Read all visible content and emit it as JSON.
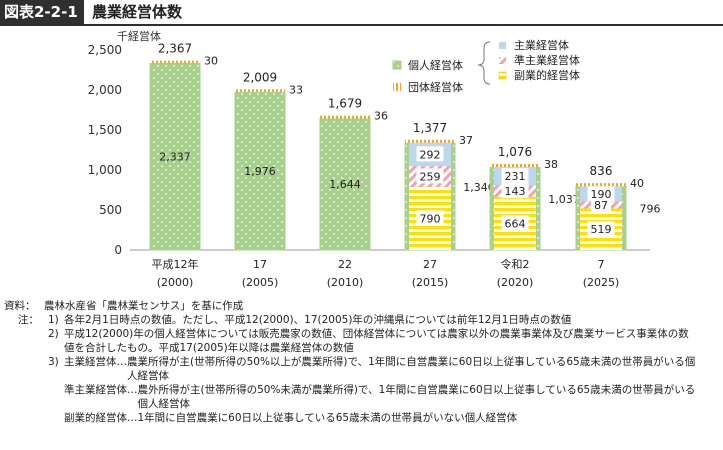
{
  "header": {
    "figure_number": "図表2-2-1",
    "title": "農業経営体数"
  },
  "colors": {
    "individual": "#a8d08d",
    "main": "#bdd7ee",
    "semi_main_stripe": "#f4a0b0",
    "side": "#ffe000",
    "organization": "#f5a623"
  },
  "chart_data": {
    "type": "bar",
    "stacked": true,
    "ylabel": "千経営体",
    "ylim": [
      0,
      2500
    ],
    "yticks": [
      "0",
      "500",
      "1,000",
      "1,500",
      "2,000",
      "2,500"
    ],
    "categories": [
      {
        "line1": "平成12年",
        "line2": "(2000)"
      },
      {
        "line1": "17",
        "line2": "(2005)"
      },
      {
        "line1": "22",
        "line2": "(2010)"
      },
      {
        "line1": "27",
        "line2": "(2015)"
      },
      {
        "line1": "令和2",
        "line2": "(2020)"
      },
      {
        "line1": "7",
        "line2": "(2025)"
      }
    ],
    "totals": [
      2367,
      2009,
      1679,
      1377,
      1076,
      836
    ],
    "total_labels": [
      "2,367",
      "2,009",
      "1,679",
      "1,377",
      "1,076",
      "836"
    ],
    "individual": [
      2337,
      1976,
      1644,
      1340,
      1037,
      796
    ],
    "individual_labels": [
      "2,337",
      "1,976",
      "1,644",
      "1,340",
      "1,037",
      "796"
    ],
    "main": [
      null,
      null,
      null,
      292,
      231,
      190
    ],
    "semi_main": [
      null,
      null,
      null,
      259,
      143,
      87
    ],
    "side": [
      null,
      null,
      null,
      790,
      664,
      519
    ],
    "organization": [
      30,
      33,
      36,
      37,
      38,
      40
    ],
    "legend": {
      "individual": "個人経営体",
      "organization": "団体経営体",
      "main": "主業経営体",
      "semi_main": "準主業経営体",
      "side": "副業的経営体"
    }
  },
  "notes": {
    "source_tag": "資料：",
    "source_text": "農林水産省「農林業センサス」を基に作成",
    "note_tag": "注：",
    "items": [
      {
        "num": "1)",
        "lines": [
          "各年2月1日時点の数値。ただし、平成12(2000)、17(2005)年の沖縄県については前年12月1日時点の数値"
        ]
      },
      {
        "num": "2)",
        "lines": [
          "平成12(2000)年の個人経営体については販売農家の数値、団体経営体については農家以外の農業事業体及び農業サービス事業体の数",
          "値を合計したもの。平成17(2005)年以降は農業経営体の数値"
        ]
      },
      {
        "num": "3)",
        "lines": [
          "主業経営体…農業所得が主(世帯所得の50%以上が農業所得)で、1年間に自営農業に60日以上従事している65歳未満の世帯員がいる個",
          "　　　　　　人経営体",
          "準主業経営体…農外所得が主(世帯所得の50%未満が農業所得)で、1年間に自営農業に60日以上従事している65歳未満の世帯員がいる",
          "　　　　　　　個人経営体",
          "副業的経営体…1年間に自営農業に60日以上従事している65歳未満の世帯員がいない個人経営体"
        ]
      }
    ]
  }
}
